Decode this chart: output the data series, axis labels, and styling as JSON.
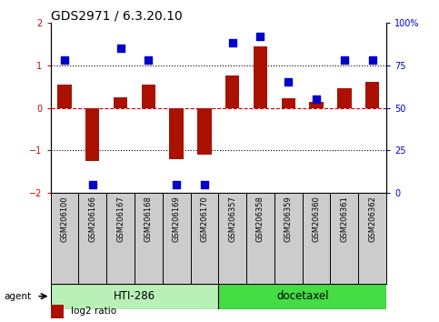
{
  "title": "GDS2971 / 6.3.20.10",
  "samples": [
    "GSM206100",
    "GSM206166",
    "GSM206167",
    "GSM206168",
    "GSM206169",
    "GSM206170",
    "GSM206357",
    "GSM206358",
    "GSM206359",
    "GSM206360",
    "GSM206361",
    "GSM206362"
  ],
  "log2_ratio": [
    0.55,
    -1.25,
    0.25,
    0.55,
    -1.2,
    -1.1,
    0.75,
    1.45,
    0.22,
    0.15,
    0.45,
    0.6
  ],
  "percentile_rank": [
    78,
    5,
    85,
    78,
    5,
    5,
    88,
    92,
    65,
    55,
    78,
    78
  ],
  "bar_color": "#aa1100",
  "dot_color": "#0000cc",
  "ylim_left": [
    -2,
    2
  ],
  "yticks_left": [
    -2,
    -1,
    0,
    1,
    2
  ],
  "yticks_right": [
    0,
    25,
    50,
    75,
    100
  ],
  "ytick_labels_right": [
    "0",
    "25",
    "50",
    "75",
    "100%"
  ],
  "hti_color": "#b8f0b8",
  "doc_color": "#44dd44",
  "bar_width": 0.5,
  "dot_size": 40
}
